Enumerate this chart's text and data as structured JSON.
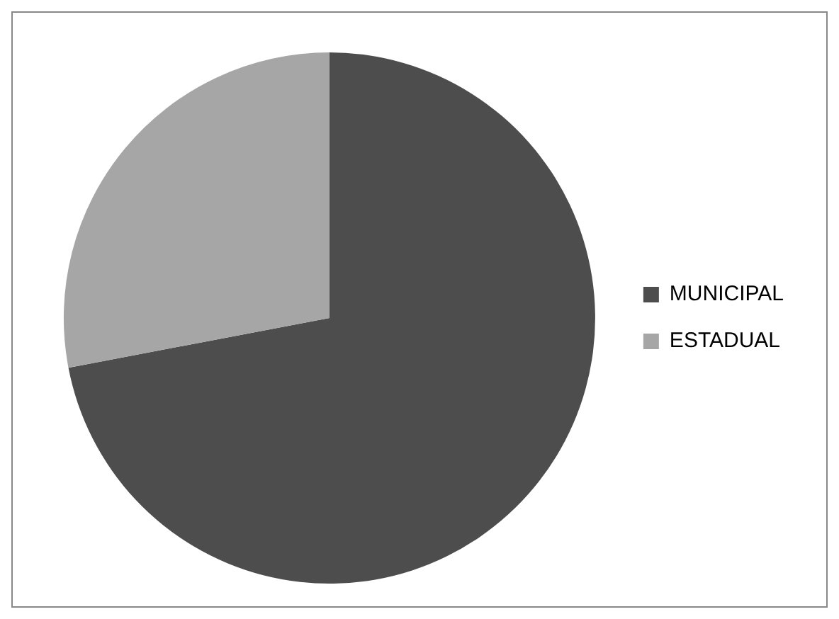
{
  "chart_data": {
    "type": "pie",
    "categories": [
      "MUNICIPAL",
      "ESTADUAL"
    ],
    "values": [
      72,
      28
    ],
    "colors": [
      "#4d4d4d",
      "#a6a6a6"
    ],
    "legend": "right"
  }
}
